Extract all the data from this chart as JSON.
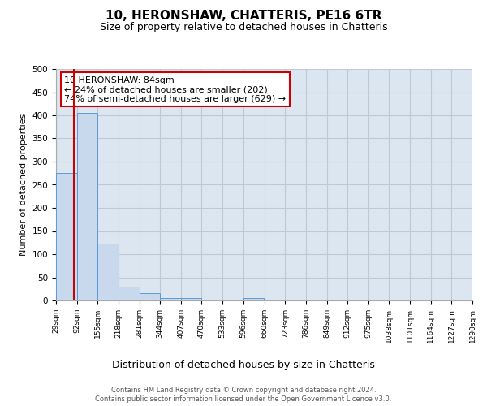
{
  "title": "10, HERONSHAW, CHATTERIS, PE16 6TR",
  "subtitle": "Size of property relative to detached houses in Chatteris",
  "xlabel": "Distribution of detached houses by size in Chatteris",
  "ylabel": "Number of detached properties",
  "bin_edges": [
    29,
    92,
    155,
    218,
    281,
    344,
    407,
    470,
    533,
    596,
    660,
    723,
    786,
    849,
    912,
    975,
    1038,
    1101,
    1164,
    1227,
    1290
  ],
  "bar_heights": [
    275,
    405,
    122,
    29,
    15,
    5,
    5,
    0,
    0,
    5,
    0,
    0,
    0,
    0,
    0,
    0,
    0,
    0,
    0,
    0
  ],
  "bar_color": "#c9d9ed",
  "bar_edge_color": "#5b9bd5",
  "grid_color": "#c0c8d8",
  "background_color": "#dce6f0",
  "red_line_x": 84,
  "annotation_title": "10 HERONSHAW: 84sqm",
  "annotation_line1": "← 24% of detached houses are smaller (202)",
  "annotation_line2": "74% of semi-detached houses are larger (629) →",
  "annotation_box_color": "#ffffff",
  "annotation_border_color": "#cc0000",
  "red_line_color": "#cc0000",
  "ylim": [
    0,
    500
  ],
  "yticks": [
    0,
    50,
    100,
    150,
    200,
    250,
    300,
    350,
    400,
    450,
    500
  ],
  "footer1": "Contains HM Land Registry data © Crown copyright and database right 2024.",
  "footer2": "Contains public sector information licensed under the Open Government Licence v3.0.",
  "title_fontsize": 11,
  "subtitle_fontsize": 9,
  "xlabel_fontsize": 9,
  "ylabel_fontsize": 8,
  "tick_fontsize": 7.5,
  "xtick_fontsize": 6.5,
  "footer_fontsize": 6,
  "annot_fontsize": 8
}
